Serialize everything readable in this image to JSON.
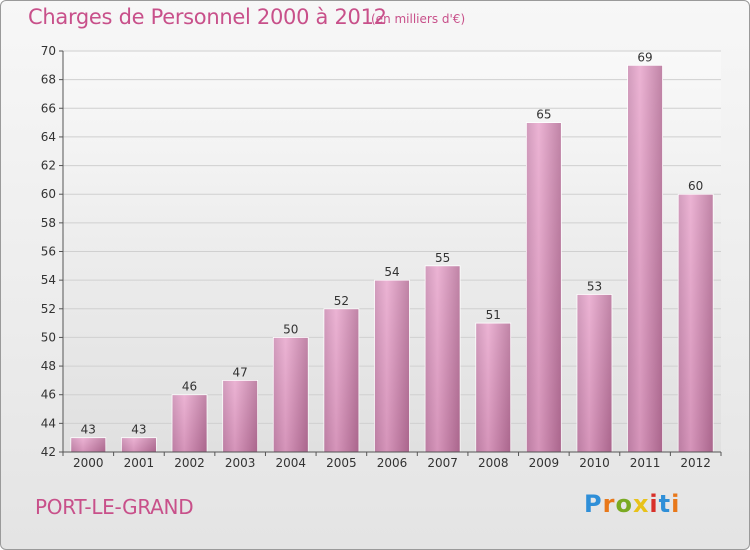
{
  "header": {
    "title": "Charges de Personnel 2000 à 2012",
    "subtitle": "(en milliers d'€)"
  },
  "footer": {
    "commune": "PORT-LE-GRAND",
    "brand": "Proxiti"
  },
  "colors": {
    "bar_light": "#e8a6cc",
    "bar_dark": "#b46e96",
    "title": "#c8508a",
    "brand_letters": [
      "#2f8fd8",
      "#e8781a",
      "#7aaa22",
      "#e8c21a",
      "#d8302a",
      "#2f8fd8",
      "#e8781a"
    ]
  },
  "chart_data": {
    "type": "bar",
    "title": "Charges de Personnel 2000 à 2012",
    "subtitle": "(en milliers d'€)",
    "categories": [
      "2000",
      "2001",
      "2002",
      "2003",
      "2004",
      "2005",
      "2006",
      "2007",
      "2008",
      "2009",
      "2010",
      "2011",
      "2012"
    ],
    "values": [
      43,
      43,
      46,
      47,
      50,
      52,
      54,
      55,
      51,
      65,
      53,
      69,
      60
    ],
    "data_labels": [
      "43",
      "43",
      "46",
      "47",
      "50",
      "52",
      "54",
      "55",
      "51",
      "65",
      "53",
      "69",
      "60"
    ],
    "ylim": [
      42,
      70
    ],
    "yticks": [
      42,
      44,
      46,
      48,
      50,
      52,
      54,
      56,
      58,
      60,
      62,
      64,
      66,
      68,
      70
    ],
    "ytick_labels": [
      "42",
      "44",
      "46",
      "48",
      "50",
      "52",
      "54",
      "56",
      "58",
      "60",
      "62",
      "64",
      "66",
      "68",
      "70"
    ],
    "grid": true,
    "xlabel": "",
    "ylabel": ""
  }
}
